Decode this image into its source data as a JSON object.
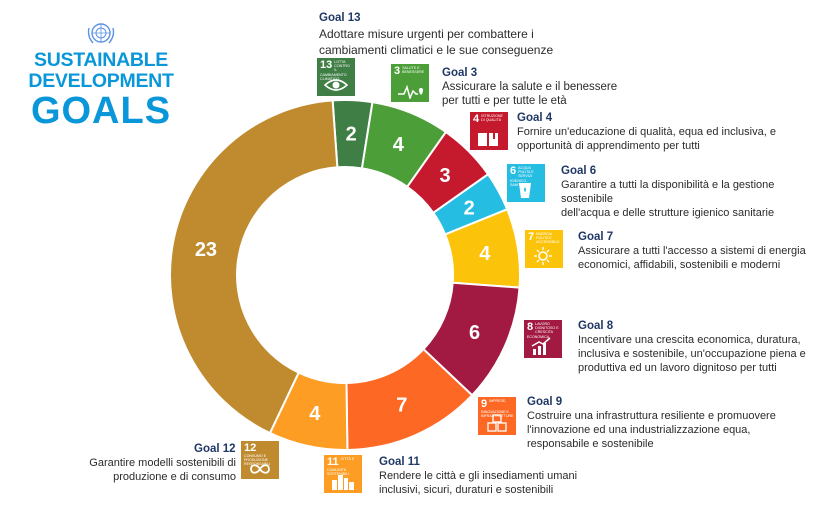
{
  "logo": {
    "line1": "SUSTAINABLE",
    "line2": "DEVELOPMENT",
    "line3": "GOALS"
  },
  "chart_data": {
    "type": "pie",
    "donut": true,
    "order": "clockwise from top",
    "slices": [
      {
        "goal": "13",
        "value": 2,
        "color": "#3f7e44"
      },
      {
        "goal": "3",
        "value": 4,
        "color": "#4c9f38"
      },
      {
        "goal": "4",
        "value": 3,
        "color": "#c5192d"
      },
      {
        "goal": "6",
        "value": 2,
        "color": "#26bde2"
      },
      {
        "goal": "7",
        "value": 4,
        "color": "#fcc30b"
      },
      {
        "goal": "8",
        "value": 6,
        "color": "#a21942"
      },
      {
        "goal": "9",
        "value": 7,
        "color": "#fd6925"
      },
      {
        "goal": "11",
        "value": 4,
        "color": "#fd9d24"
      },
      {
        "goal": "12",
        "value": 23,
        "color": "#bf8b2e"
      }
    ]
  },
  "goals": {
    "g13": {
      "title": "Goal 13",
      "line1": "Adottare misure urgenti per combattere i",
      "line2": "cambiamenti climatici e le sue conseguenze",
      "tile_num": "13",
      "tile_text": "Lotta contro il cambiamento climatico",
      "color": "#3f7e44",
      "icon": "eye-globe-icon"
    },
    "g3": {
      "title": "Goal 3",
      "line1": "Assicurare la salute e il benessere",
      "line2": "per tutti e per tutte le età",
      "tile_num": "3",
      "tile_text": "Salute e benessere",
      "color": "#4c9f38",
      "icon": "heartbeat-icon"
    },
    "g4": {
      "title": "Goal 4",
      "line1": "Fornire un'educazione di qualità, equa ed inclusiva, e",
      "line2": "opportunità di apprendimento per tutti",
      "tile_num": "4",
      "tile_text": "Istruzione di qualità",
      "color": "#c5192d",
      "icon": "book-icon"
    },
    "g6": {
      "title": "Goal 6",
      "line1": "Garantire a tutti la disponibilità e la gestione sostenibile",
      "line2": "dell'acqua e delle strutture igienico sanitarie",
      "tile_num": "6",
      "tile_text": "Acqua pulita e servizi igienico-sanitari",
      "color": "#26bde2",
      "icon": "water-glass-icon"
    },
    "g7": {
      "title": "Goal 7",
      "line1": "Assicurare a tutti l'accesso a sistemi di energia",
      "line2": "economici, affidabili, sostenibili e moderni",
      "tile_num": "7",
      "tile_text": "Energia pulita e accessibile",
      "color": "#fcc30b",
      "icon": "sun-power-icon"
    },
    "g8": {
      "title": "Goal 8",
      "line1": "Incentivare una crescita economica, duratura,",
      "line2": "inclusiva e sostenibile, un'occupazione piena e",
      "line3": "produttiva ed un lavoro dignitoso per tutti",
      "tile_num": "8",
      "tile_text": "Lavoro dignitoso e crescita economica",
      "color": "#a21942",
      "icon": "growth-chart-icon"
    },
    "g9": {
      "title": "Goal 9",
      "line1": "Costruire una infrastruttura resiliente e promuovere",
      "line2": "l'innovazione ed una industrializzazione equa,",
      "line3": "responsabile e sostenibile",
      "tile_num": "9",
      "tile_text": "Imprese, innovazione e infrastrutture",
      "color": "#fd6925",
      "icon": "cubes-icon"
    },
    "g11": {
      "title": "Goal 11",
      "line1": "Rendere le città e gli insediamenti umani",
      "line2": "inclusivi, sicuri, duraturi e sostenibili",
      "tile_num": "11",
      "tile_text": "Città e comunità sostenibili",
      "color": "#fd9d24",
      "icon": "city-icon"
    },
    "g12": {
      "title": "Goal 12",
      "line1": "Garantire modelli sostenibili di",
      "line2": "produzione e di consumo",
      "tile_num": "12",
      "tile_text": "Consumo e produzione responsabili",
      "color": "#bf8b2e",
      "icon": "infinity-icon"
    }
  }
}
